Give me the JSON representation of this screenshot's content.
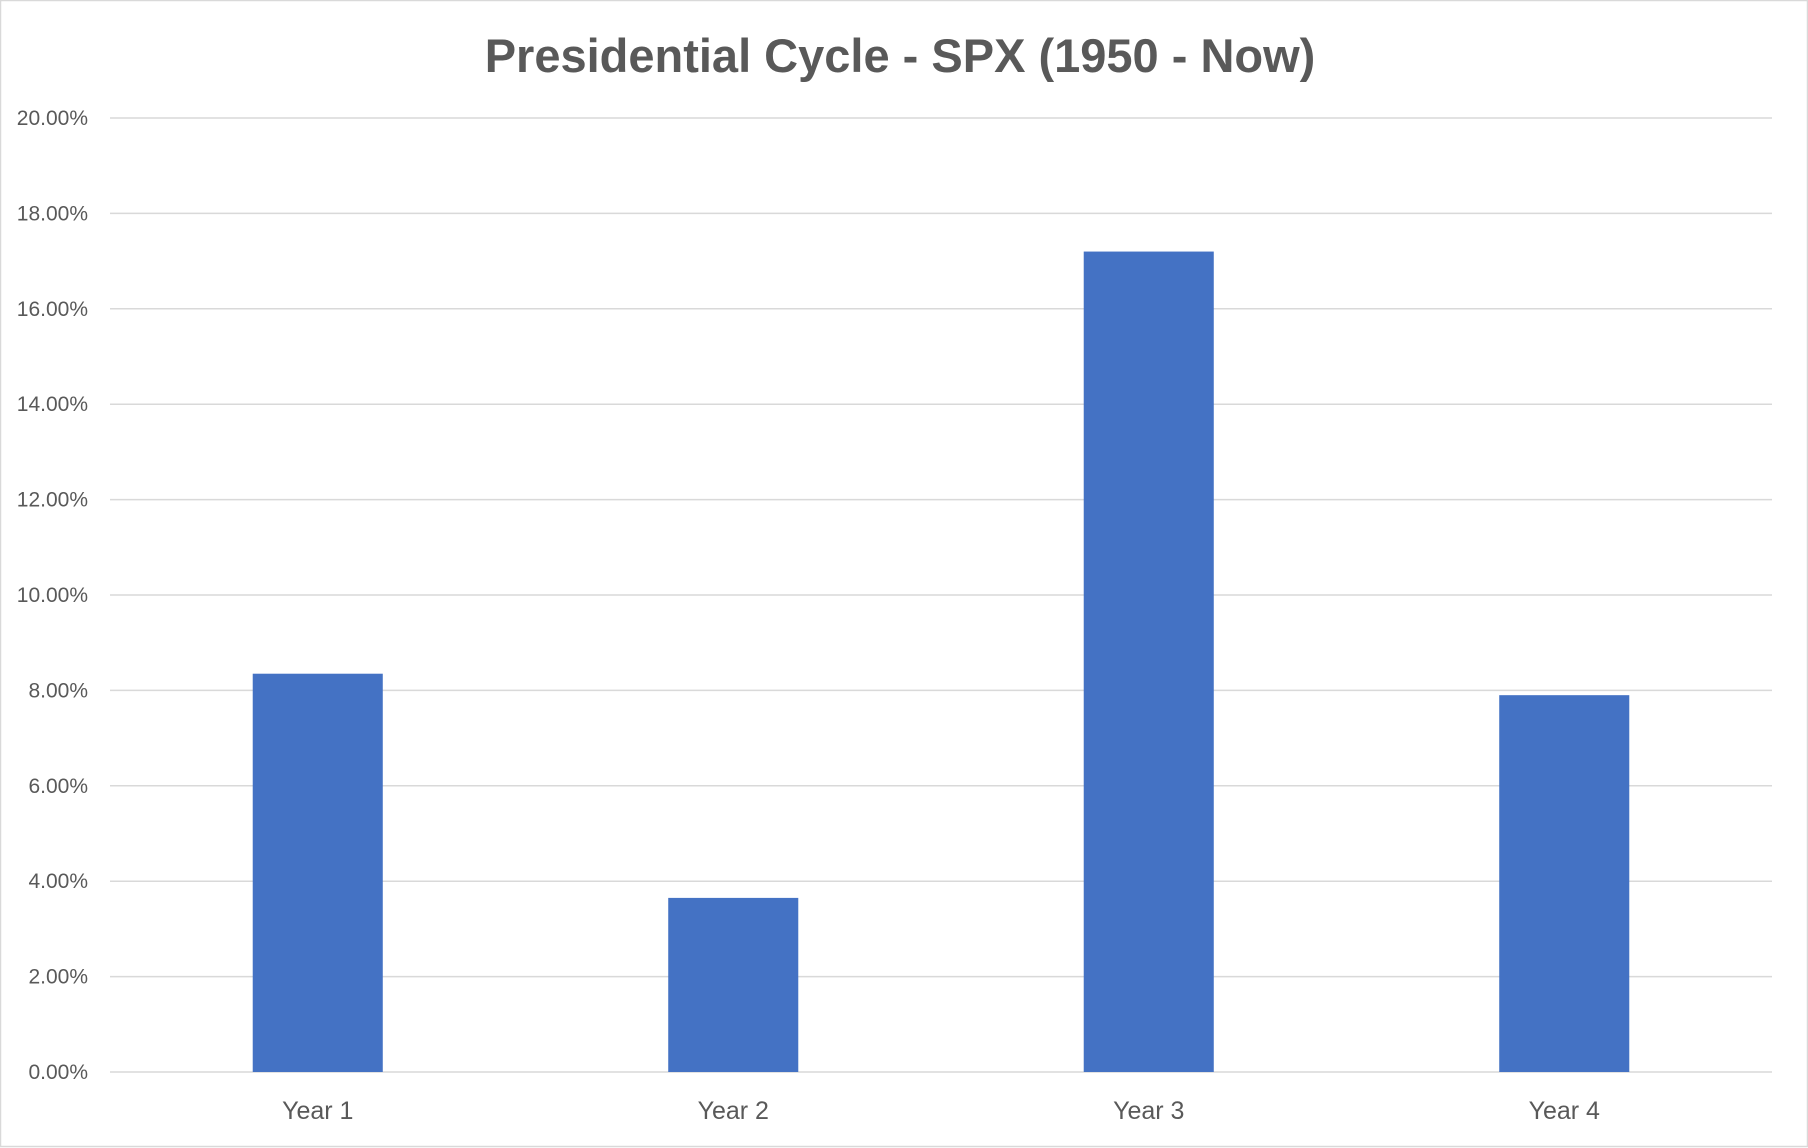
{
  "chart_data": {
    "type": "bar",
    "title": "Presidential Cycle - SPX (1950 - Now)",
    "xlabel": "",
    "ylabel": "",
    "categories": [
      "Year 1",
      "Year 2",
      "Year 3",
      "Year 4"
    ],
    "series": [
      {
        "values": [
          8.35,
          3.65,
          17.2,
          7.9
        ],
        "color": "#4472c4"
      }
    ],
    "ylim": [
      0,
      20
    ],
    "y_ticks": [
      "0.00%",
      "2.00%",
      "4.00%",
      "6.00%",
      "8.00%",
      "10.00%",
      "12.00%",
      "14.00%",
      "16.00%",
      "18.00%",
      "20.00%"
    ],
    "y_tick_values": [
      0,
      2,
      4,
      6,
      8,
      10,
      12,
      14,
      16,
      18,
      20
    ],
    "grid": true,
    "legend": "none",
    "colors": {
      "bar": "#4472c4",
      "grid": "#d9d9d9",
      "text": "#595959"
    }
  }
}
